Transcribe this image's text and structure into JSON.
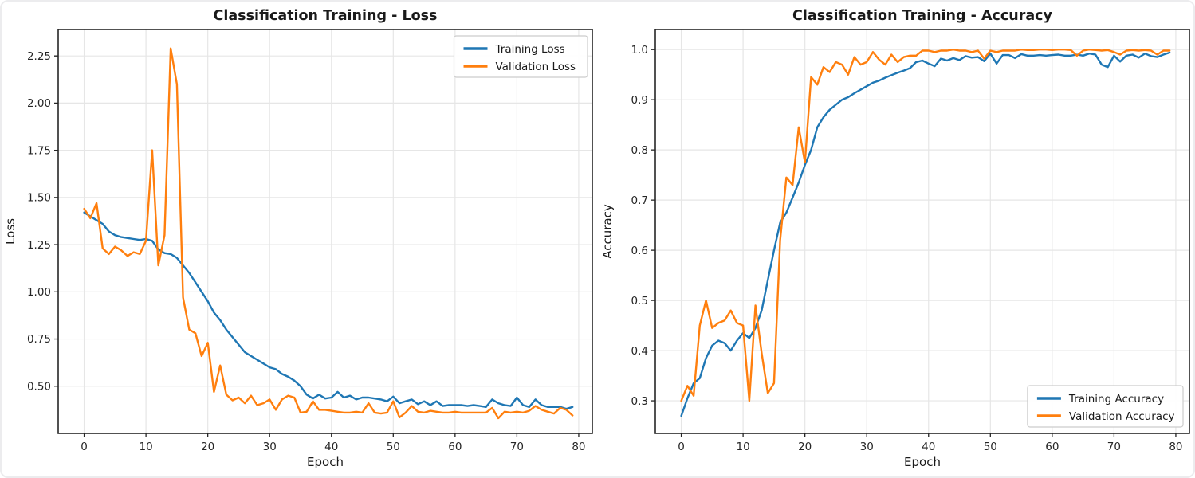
{
  "styles": {
    "figure_bg": "#ffffff",
    "frame_border": "#ececee",
    "plot_bg": "#ffffff",
    "grid": "#e6e6e6",
    "spine": "#262626",
    "text": "#1a1a1a",
    "tick_text": "#262626",
    "legend_border": "#cccccc",
    "train_color": "#1f77b4",
    "val_color": "#ff7f0e"
  },
  "chart_data": [
    {
      "type": "line",
      "title": "Classification Training - Loss",
      "xlabel": "Epoch",
      "ylabel": "Loss",
      "x_start": 0,
      "x_step": 1,
      "xlim": [
        -4.2,
        82.2
      ],
      "ylim": [
        0.25,
        2.39
      ],
      "xticks": [
        0,
        10,
        20,
        30,
        40,
        50,
        60,
        70,
        80
      ],
      "yticks": [
        0.5,
        0.75,
        1.0,
        1.25,
        1.5,
        1.75,
        2.0,
        2.25
      ],
      "ytick_labels": [
        "0.50",
        "0.75",
        "1.00",
        "1.25",
        "1.50",
        "1.75",
        "2.00",
        "2.25"
      ],
      "grid": true,
      "legend_loc": "upper right",
      "series": [
        {
          "name": "Training Loss",
          "color": "#1f77b4",
          "values": [
            1.42,
            1.4,
            1.38,
            1.36,
            1.32,
            1.3,
            1.29,
            1.285,
            1.28,
            1.275,
            1.28,
            1.27,
            1.225,
            1.205,
            1.2,
            1.18,
            1.14,
            1.1,
            1.05,
            1.0,
            0.95,
            0.89,
            0.85,
            0.8,
            0.76,
            0.72,
            0.68,
            0.66,
            0.64,
            0.62,
            0.6,
            0.59,
            0.565,
            0.55,
            0.53,
            0.5,
            0.455,
            0.435,
            0.455,
            0.435,
            0.44,
            0.47,
            0.44,
            0.45,
            0.43,
            0.44,
            0.44,
            0.435,
            0.43,
            0.42,
            0.445,
            0.41,
            0.42,
            0.43,
            0.405,
            0.42,
            0.4,
            0.42,
            0.395,
            0.4,
            0.4,
            0.4,
            0.395,
            0.4,
            0.395,
            0.39,
            0.43,
            0.41,
            0.4,
            0.395,
            0.44,
            0.4,
            0.39,
            0.43,
            0.4,
            0.39,
            0.39,
            0.39,
            0.38,
            0.39
          ]
        },
        {
          "name": "Validation Loss",
          "color": "#ff7f0e",
          "values": [
            1.44,
            1.39,
            1.47,
            1.23,
            1.2,
            1.24,
            1.22,
            1.19,
            1.21,
            1.2,
            1.27,
            1.75,
            1.14,
            1.3,
            2.29,
            2.1,
            0.97,
            0.8,
            0.78,
            0.66,
            0.73,
            0.47,
            0.61,
            0.455,
            0.425,
            0.44,
            0.41,
            0.45,
            0.4,
            0.41,
            0.43,
            0.375,
            0.43,
            0.45,
            0.44,
            0.36,
            0.365,
            0.42,
            0.375,
            0.375,
            0.37,
            0.365,
            0.36,
            0.36,
            0.365,
            0.36,
            0.41,
            0.36,
            0.355,
            0.36,
            0.42,
            0.335,
            0.36,
            0.395,
            0.365,
            0.36,
            0.37,
            0.365,
            0.36,
            0.36,
            0.365,
            0.36,
            0.36,
            0.36,
            0.36,
            0.36,
            0.385,
            0.33,
            0.365,
            0.36,
            0.365,
            0.36,
            0.37,
            0.395,
            0.375,
            0.365,
            0.355,
            0.385,
            0.375,
            0.345
          ]
        }
      ]
    },
    {
      "type": "line",
      "title": "Classification Training - Accuracy",
      "xlabel": "Epoch",
      "ylabel": "Accuracy",
      "x_start": 0,
      "x_step": 1,
      "xlim": [
        -4.2,
        82.2
      ],
      "ylim": [
        0.235,
        1.04
      ],
      "xticks": [
        0,
        10,
        20,
        30,
        40,
        50,
        60,
        70,
        80
      ],
      "yticks": [
        0.3,
        0.4,
        0.5,
        0.6,
        0.7,
        0.8,
        0.9,
        1.0
      ],
      "ytick_labels": [
        "0.3",
        "0.4",
        "0.5",
        "0.6",
        "0.7",
        "0.8",
        "0.9",
        "1.0"
      ],
      "grid": true,
      "legend_loc": "lower right",
      "series": [
        {
          "name": "Training Accuracy",
          "color": "#1f77b4",
          "values": [
            0.27,
            0.305,
            0.335,
            0.345,
            0.385,
            0.41,
            0.42,
            0.415,
            0.4,
            0.42,
            0.435,
            0.425,
            0.445,
            0.48,
            0.54,
            0.6,
            0.655,
            0.675,
            0.705,
            0.735,
            0.77,
            0.8,
            0.845,
            0.865,
            0.88,
            0.89,
            0.9,
            0.905,
            0.913,
            0.92,
            0.927,
            0.934,
            0.938,
            0.944,
            0.949,
            0.954,
            0.958,
            0.963,
            0.975,
            0.978,
            0.972,
            0.967,
            0.982,
            0.978,
            0.983,
            0.979,
            0.987,
            0.984,
            0.985,
            0.977,
            0.992,
            0.972,
            0.989,
            0.989,
            0.983,
            0.991,
            0.988,
            0.988,
            0.989,
            0.988,
            0.989,
            0.99,
            0.988,
            0.988,
            0.99,
            0.988,
            0.992,
            0.99,
            0.97,
            0.965,
            0.988,
            0.976,
            0.988,
            0.99,
            0.984,
            0.992,
            0.987,
            0.985,
            0.99,
            0.994
          ]
        },
        {
          "name": "Validation Accuracy",
          "color": "#ff7f0e",
          "values": [
            0.3,
            0.33,
            0.31,
            0.45,
            0.5,
            0.445,
            0.455,
            0.46,
            0.48,
            0.455,
            0.45,
            0.3,
            0.49,
            0.395,
            0.315,
            0.335,
            0.62,
            0.745,
            0.73,
            0.845,
            0.775,
            0.945,
            0.93,
            0.965,
            0.955,
            0.975,
            0.97,
            0.95,
            0.985,
            0.97,
            0.975,
            0.995,
            0.98,
            0.97,
            0.99,
            0.975,
            0.985,
            0.988,
            0.988,
            0.998,
            0.998,
            0.995,
            0.998,
            0.998,
            1.0,
            0.998,
            0.998,
            0.995,
            0.998,
            0.982,
            0.998,
            0.995,
            0.998,
            0.998,
            0.998,
            1.0,
            0.999,
            0.999,
            1.0,
            1.0,
            0.999,
            1.0,
            1.0,
            0.999,
            0.988,
            0.998,
            1.0,
            0.999,
            0.998,
            0.999,
            0.995,
            0.99,
            0.998,
            0.999,
            0.998,
            0.999,
            0.998,
            0.99,
            0.998,
            0.998
          ]
        }
      ]
    }
  ]
}
